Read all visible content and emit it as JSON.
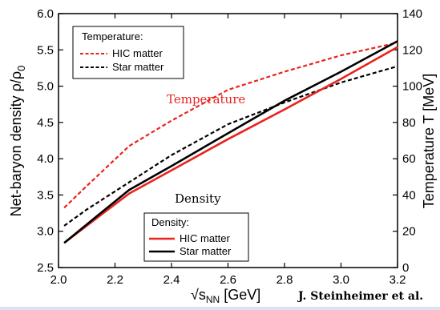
{
  "chart_data": {
    "type": "line",
    "xlabel_main": "√s",
    "xlabel_sub": "NN",
    "xlabel_unit": " [GeV]",
    "ylabel_left": "Net-baryon density  ρ/ρ",
    "ylabel_left_sub": "0",
    "ylabel_right": "Temperature T [MeV]",
    "xlim": [
      2.0,
      3.2
    ],
    "ylim_left": [
      2.5,
      6.0
    ],
    "ylim_right": [
      0,
      140
    ],
    "x_ticks": [
      "2.0",
      "2.2",
      "2.4",
      "2.6",
      "2.8",
      "3.0",
      "3.2"
    ],
    "y_left_ticks": [
      "2.5",
      "3.0",
      "3.5",
      "4.0",
      "4.5",
      "5.0",
      "5.5",
      "6.0"
    ],
    "y_right_ticks": [
      "0",
      "20",
      "40",
      "60",
      "80",
      "100",
      "120",
      "140"
    ],
    "series": [
      {
        "name": "HIC matter",
        "group": "Temperature",
        "axis": "right",
        "color": "#e8231c",
        "dash": "dashed",
        "x": [
          2.02,
          2.1,
          2.25,
          2.4,
          2.6,
          2.8,
          3.0,
          3.2
        ],
        "y": [
          33,
          45,
          67,
          81,
          98,
          108,
          117,
          124
        ]
      },
      {
        "name": "Star matter",
        "group": "Temperature",
        "axis": "right",
        "color": "#000000",
        "dash": "dashed",
        "x": [
          2.02,
          2.1,
          2.25,
          2.4,
          2.6,
          2.8,
          3.0,
          3.2
        ],
        "y": [
          23,
          32,
          47,
          62,
          79,
          91,
          102,
          111
        ]
      },
      {
        "name": "HIC matter",
        "group": "Density",
        "axis": "left",
        "color": "#e8231c",
        "dash": "solid",
        "x": [
          2.02,
          2.25,
          2.4,
          2.6,
          2.8,
          3.0,
          3.2
        ],
        "y": [
          2.84,
          3.52,
          3.84,
          4.27,
          4.68,
          5.1,
          5.54
        ]
      },
      {
        "name": "Star matter",
        "group": "Density",
        "axis": "left",
        "color": "#000000",
        "dash": "solid",
        "x": [
          2.02,
          2.25,
          2.4,
          2.6,
          2.8,
          3.0,
          3.2
        ],
        "y": [
          2.84,
          3.57,
          3.9,
          4.35,
          4.8,
          5.2,
          5.62
        ]
      }
    ],
    "legends": [
      {
        "title": "Temperature:",
        "entries": [
          "HIC matter",
          "Star matter"
        ]
      },
      {
        "title": "Density:",
        "entries": [
          "HIC matter",
          "Star matter"
        ]
      }
    ],
    "annotations": {
      "temperature": "Temperature",
      "density": "Density",
      "credit": "J. Steinheimer et al."
    }
  }
}
